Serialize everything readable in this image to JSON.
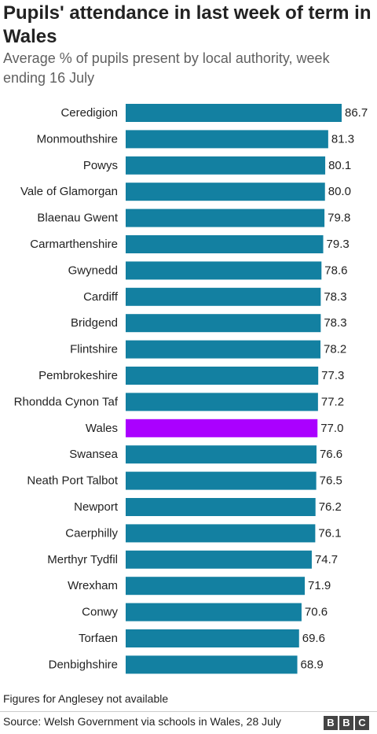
{
  "title": "Pupils' attendance in last week of term in Wales",
  "subtitle": "Average % of pupils present by local authority, week ending 16 July",
  "footnote": "Figures for Anglesey not available",
  "source": "Source: Welsh Government via schools in Wales, 28 July",
  "logo": {
    "b1": "B",
    "b2": "B",
    "c": "C"
  },
  "colors": {
    "bar": "#1380A1",
    "highlight": "#AA00FF",
    "text": "#222222",
    "subtitle": "#606060"
  },
  "chart_data": {
    "type": "bar",
    "orientation": "horizontal",
    "highlight_category": "Wales",
    "categories": [
      "Ceredigion",
      "Monmouthshire",
      "Powys",
      "Vale of Glamorgan",
      "Blaenau Gwent",
      "Carmarthenshire",
      "Gwynedd",
      "Cardiff",
      "Bridgend",
      "Flintshire",
      "Pembrokeshire",
      "Rhondda Cynon Taf",
      "Wales",
      "Swansea",
      "Neath Port Talbot",
      "Newport",
      "Caerphilly",
      "Merthyr Tydfil",
      "Wrexham",
      "Conwy",
      "Torfaen",
      "Denbighshire"
    ],
    "values": [
      86.7,
      81.3,
      80.1,
      80.0,
      79.8,
      79.3,
      78.6,
      78.3,
      78.3,
      78.2,
      77.3,
      77.2,
      77.0,
      76.6,
      76.5,
      76.2,
      76.1,
      74.7,
      71.9,
      70.6,
      69.6,
      68.9
    ],
    "labels": [
      "86.7",
      "81.3",
      "80.1",
      "80.0",
      "79.8",
      "79.3",
      "78.6",
      "78.3",
      "78.3",
      "78.2",
      "77.3",
      "77.2",
      "77.0",
      "76.6",
      "76.5",
      "76.2",
      "76.1",
      "74.7",
      "71.9",
      "70.6",
      "69.6",
      "68.9"
    ],
    "xlim": [
      0,
      86.7
    ],
    "grid": false
  }
}
